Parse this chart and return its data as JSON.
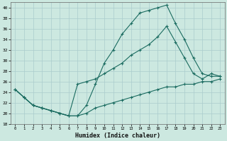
{
  "xlabel": "Humidex (Indice chaleur)",
  "bg_color": "#cce8e0",
  "grid_color": "#aacccc",
  "line_color": "#1a6b60",
  "xlim": [
    -0.5,
    23.5
  ],
  "ylim": [
    18,
    41
  ],
  "xticks": [
    0,
    1,
    2,
    3,
    4,
    5,
    6,
    7,
    8,
    9,
    10,
    11,
    12,
    13,
    14,
    15,
    16,
    17,
    18,
    19,
    20,
    21,
    22,
    23
  ],
  "yticks": [
    18,
    20,
    22,
    24,
    26,
    28,
    30,
    32,
    34,
    36,
    38,
    40
  ],
  "line1_x": [
    0,
    1,
    2,
    3,
    4,
    5,
    6,
    7,
    8,
    9,
    10,
    11,
    12,
    13,
    14,
    15,
    16,
    17,
    18,
    19,
    20,
    21,
    22,
    23
  ],
  "line1_y": [
    24.5,
    23.0,
    21.5,
    21.0,
    20.5,
    20.0,
    19.5,
    19.5,
    21.5,
    25.5,
    29.5,
    32.0,
    35.0,
    37.0,
    39.0,
    39.5,
    40.0,
    40.5,
    37.0,
    34.0,
    30.5,
    27.5,
    27.0,
    27.0
  ],
  "line2_x": [
    0,
    1,
    2,
    3,
    4,
    5,
    6,
    7,
    8,
    9,
    10,
    11,
    12,
    13,
    14,
    15,
    16,
    17,
    18,
    19,
    20,
    21,
    22,
    23
  ],
  "line2_y": [
    24.5,
    23.0,
    21.5,
    21.0,
    20.5,
    20.0,
    19.5,
    25.5,
    26.0,
    26.5,
    27.5,
    28.5,
    29.5,
    31.0,
    32.0,
    33.0,
    34.5,
    36.5,
    33.5,
    30.5,
    27.5,
    26.5,
    27.5,
    27.0
  ],
  "line3_x": [
    0,
    1,
    2,
    3,
    4,
    5,
    6,
    7,
    8,
    9,
    10,
    11,
    12,
    13,
    14,
    15,
    16,
    17,
    18,
    19,
    20,
    21,
    22,
    23
  ],
  "line3_y": [
    24.5,
    23.0,
    21.5,
    21.0,
    20.5,
    20.0,
    19.5,
    19.5,
    20.0,
    21.0,
    21.5,
    22.0,
    22.5,
    23.0,
    23.5,
    24.0,
    24.5,
    25.0,
    25.0,
    25.5,
    25.5,
    26.0,
    26.0,
    26.5
  ]
}
